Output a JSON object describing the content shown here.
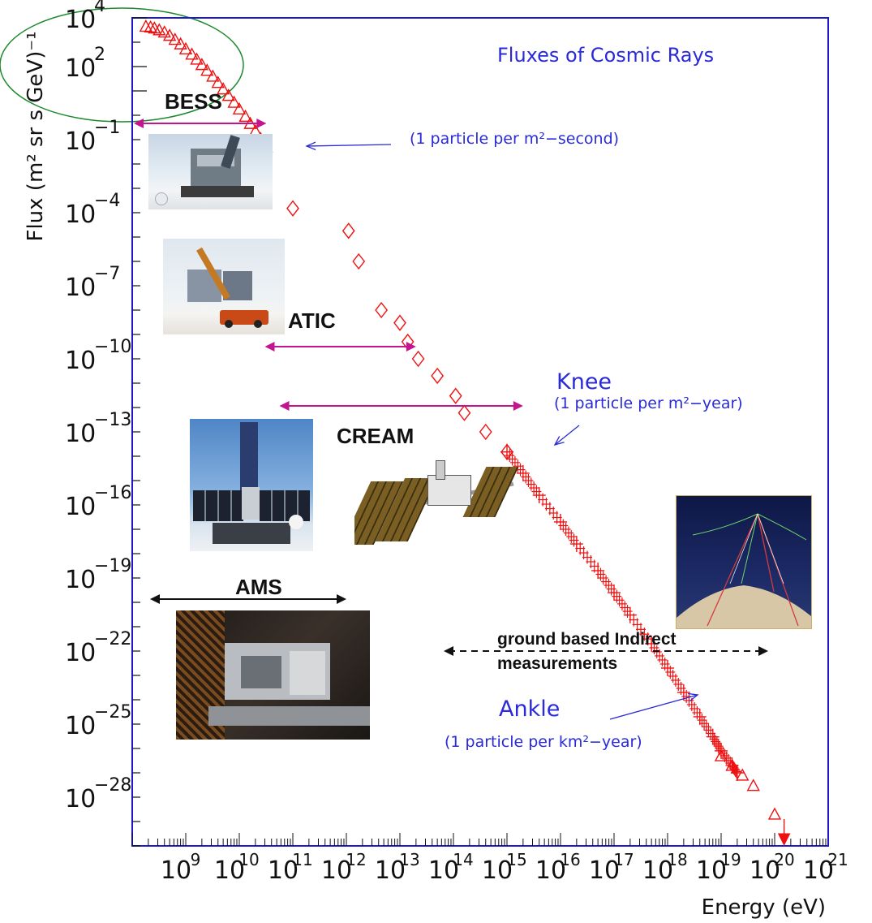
{
  "chart_data": {
    "type": "scatter",
    "title": "Fluxes of Cosmic Rays",
    "xlabel": "Energy (eV)",
    "ylabel": "Flux (m² sr s GeV)⁻¹",
    "x_scale": "log",
    "y_scale": "log",
    "xlim": [
      100000000.0,
      1e+21
    ],
    "ylim": [
      1e-30,
      10000.0
    ],
    "x_ticks": [
      {
        "exp": "9",
        "value": 1000000000.0
      },
      {
        "exp": "10",
        "value": 10000000000.0
      },
      {
        "exp": "11",
        "value": 100000000000.0
      },
      {
        "exp": "12",
        "value": 1000000000000.0
      },
      {
        "exp": "13",
        "value": 10000000000000.0
      },
      {
        "exp": "14",
        "value": 100000000000000.0
      },
      {
        "exp": "15",
        "value": 1000000000000000.0
      },
      {
        "exp": "16",
        "value": 1e+16
      },
      {
        "exp": "17",
        "value": 1e+17
      },
      {
        "exp": "18",
        "value": 1e+18
      },
      {
        "exp": "19",
        "value": 1e+19
      },
      {
        "exp": "20",
        "value": 1e+20
      },
      {
        "exp": "21",
        "value": 1e+21
      }
    ],
    "y_ticks": [
      {
        "exp": "4",
        "value": 10000.0
      },
      {
        "exp": "2",
        "value": 100.0
      },
      {
        "exp": "−1",
        "value": 0.1
      },
      {
        "exp": "−4",
        "value": 0.0001
      },
      {
        "exp": "−7",
        "value": 1e-07
      },
      {
        "exp": "−10",
        "value": 1e-10
      },
      {
        "exp": "−13",
        "value": 1e-13
      },
      {
        "exp": "−16",
        "value": 1e-16
      },
      {
        "exp": "−19",
        "value": 1e-19
      },
      {
        "exp": "−22",
        "value": 1e-22
      },
      {
        "exp": "−25",
        "value": 1e-25
      },
      {
        "exp": "−28",
        "value": 1e-28
      }
    ],
    "tick_base": "10",
    "grid": false,
    "colors": {
      "data": "#ee1111",
      "axis": "#1a1acc",
      "annotation": "#2a2ad8",
      "magenta": "#c4148f",
      "black": "#111111",
      "ellipse": "#1a8a2a"
    },
    "series": [
      {
        "marker": "triangle",
        "points": [
          [
            180000000.0,
            4500
          ],
          [
            220000000.0,
            4200
          ],
          [
            260000000.0,
            3800
          ],
          [
            320000000.0,
            3200
          ],
          [
            400000000.0,
            2600
          ],
          [
            500000000.0,
            1900
          ],
          [
            630000000.0,
            1300
          ],
          [
            800000000.0,
            850
          ],
          [
            1000000000.0,
            530
          ],
          [
            1300000000.0,
            320
          ],
          [
            1600000000.0,
            200
          ],
          [
            2000000000.0,
            120
          ],
          [
            2500000000.0,
            70
          ],
          [
            3200000000.0,
            40
          ],
          [
            4000000000.0,
            22
          ],
          [
            5000000000.0,
            12
          ],
          [
            6300000000.0,
            6.5
          ],
          [
            8000000000.0,
            3.4
          ],
          [
            10000000000.0,
            1.8
          ],
          [
            13000000000.0,
            0.9
          ],
          [
            16000000000.0,
            0.46
          ],
          [
            20000000000.0,
            0.23
          ],
          [
            25000000000.0,
            0.11
          ],
          [
            32000000000.0,
            0.05
          ]
        ]
      },
      {
        "marker": "diamond",
        "points": [
          [
            100000000000.0,
            0.00015
          ],
          [
            1100000000000.0,
            1.8e-05
          ],
          [
            1700000000000.0,
            1e-06
          ],
          [
            4500000000000.0,
            1e-08
          ],
          [
            10000000000000.0,
            3e-09
          ],
          [
            14000000000000.0,
            5e-10
          ],
          [
            22000000000000.0,
            1e-10
          ],
          [
            50000000000000.0,
            2e-11
          ],
          [
            110000000000000.0,
            3e-12
          ],
          [
            160000000000000.0,
            6e-13
          ],
          [
            400000000000000.0,
            1e-13
          ],
          [
            1000000000000000.0,
            1.5e-14
          ]
        ]
      },
      {
        "marker": "cross",
        "points": [
          [
            1000000000000000.0,
            1.5e-14
          ],
          [
            2000000000000000.0,
            2e-15
          ],
          [
            4000000000000000.0,
            2.5e-16
          ],
          [
            1e+16,
            2e-17
          ],
          [
            2e+16,
            2.5e-18
          ],
          [
            5e+16,
            2e-19
          ],
          [
            1e+17,
            2.5e-20
          ],
          [
            2e+17,
            3e-21
          ],
          [
            5e+17,
            2e-22
          ],
          [
            1e+18,
            2e-23
          ],
          [
            2e+18,
            2e-24
          ],
          [
            4e+18,
            2e-25
          ],
          [
            7e+18,
            3e-26
          ],
          [
            1e+19,
            8e-27
          ],
          [
            1.6e+19,
            2e-27
          ],
          [
            2e+19,
            1e-27
          ]
        ]
      },
      {
        "marker": "triangle",
        "points": [
          [
            1e+19,
            5e-27
          ],
          [
            1.6e+19,
            2e-27
          ],
          [
            2.5e+19,
            8e-28
          ],
          [
            4e+19,
            3e-28
          ],
          [
            1e+20,
            2e-29
          ]
        ]
      },
      {
        "marker": "filled-triangle-down",
        "points": [
          [
            1.5e+20,
            2e-30
          ]
        ]
      }
    ],
    "annotations": {
      "flux_1m2s": "(1 particle per m²−second)",
      "knee": "Knee",
      "knee_sub": "(1 particle per m²−year)",
      "ankle": "Ankle",
      "ankle_sub": "(1 particle per km²−year)",
      "ground_line1": "ground based Indirect",
      "ground_line2": "measurements"
    },
    "experiments": [
      {
        "name": "BESS",
        "range": [
          100000000.0,
          32000000000.0
        ],
        "color": "magenta"
      },
      {
        "name": "ATIC",
        "range": [
          30000000000.0,
          20000000000000.0
        ],
        "color": "magenta"
      },
      {
        "name": "CREAM",
        "range": [
          30000000000.0,
          2000000000000000.0
        ],
        "color": "magenta"
      },
      {
        "name": "AMS",
        "range": [
          100000000.0,
          1000000000000.0
        ],
        "color": "black"
      }
    ],
    "ground_range": [
      100000000000000.0,
      1e+20
    ]
  }
}
